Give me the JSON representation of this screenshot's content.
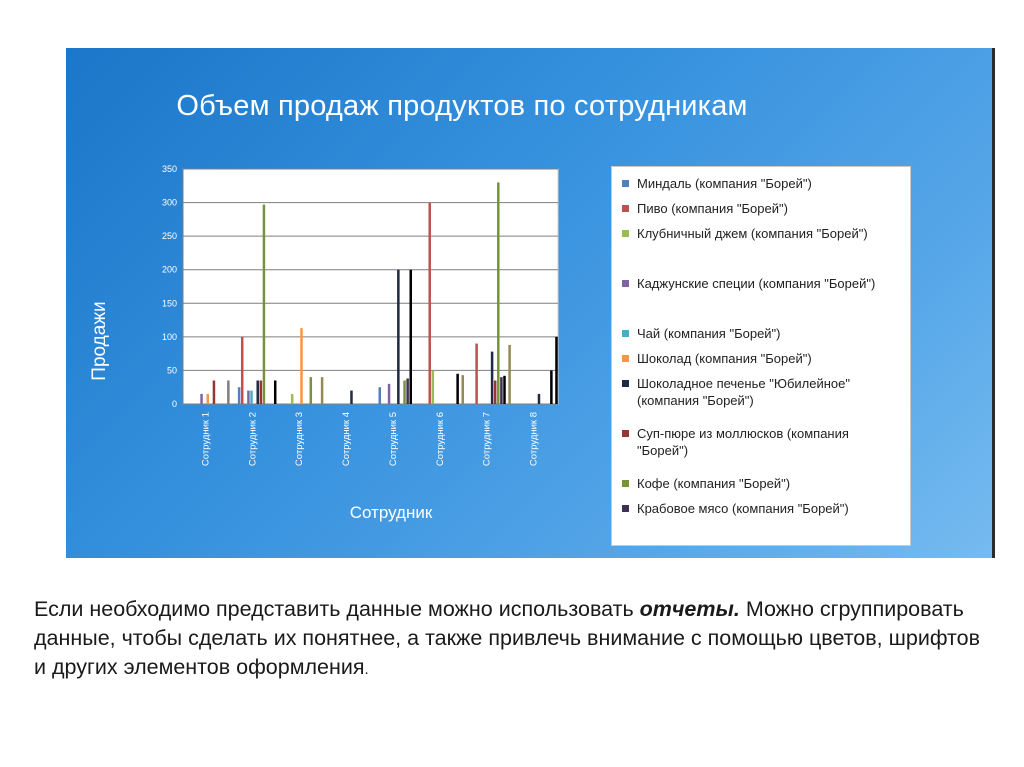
{
  "chart_data": {
    "type": "bar",
    "title": "Объем продаж продуктов по сотрудникам",
    "xlabel": "Сотрудник",
    "ylabel": "Продажи",
    "ylim": [
      0,
      350
    ],
    "yticks": [
      0,
      50,
      100,
      150,
      200,
      250,
      300,
      350
    ],
    "categories": [
      "Сотрудник 1",
      "Сотрудник 2",
      "Сотрудник 3",
      "Сотрудник 4",
      "Сотрудник 5",
      "Сотрудник 6",
      "Сотрудник 7",
      "Сотрудник 8"
    ],
    "grid": true,
    "legend_position": "right",
    "series": [
      {
        "name": "Миндаль (компания \"Борей\")",
        "color": "#4f81bd",
        "values": [
          null,
          25,
          null,
          null,
          25,
          null,
          null,
          null
        ]
      },
      {
        "name": "Пиво (компания \"Борей\")",
        "color": "#c0504d",
        "values": [
          null,
          100,
          null,
          null,
          null,
          300,
          90,
          null
        ]
      },
      {
        "name": "Клубничный джем (компания \"Борей\")",
        "color": "#9bbb59",
        "values": [
          null,
          null,
          15,
          null,
          null,
          50,
          null,
          null
        ]
      },
      {
        "name": "Каджунские специи (компания \"Борей\")",
        "color": "#8064a2",
        "values": [
          15,
          20,
          null,
          null,
          30,
          null,
          null,
          null
        ]
      },
      {
        "name": "Чай (компания \"Борей\")",
        "color": "#4bacc6",
        "values": [
          null,
          20,
          null,
          null,
          null,
          null,
          null,
          null
        ]
      },
      {
        "name": "Шоколад (компания \"Борей\")",
        "color": "#f79646",
        "values": [
          15,
          null,
          113,
          null,
          null,
          null,
          null,
          null
        ]
      },
      {
        "name": "Шоколадное печенье \"Юбилейное\" (компания \"Борей\")",
        "color": "#1f2a44",
        "values": [
          null,
          35,
          null,
          20,
          200,
          null,
          78,
          15
        ]
      },
      {
        "name": "Суп-пюре из моллюсков (компания \"Борей\")",
        "color": "#943634",
        "values": [
          35,
          35,
          null,
          null,
          null,
          null,
          35,
          null
        ]
      },
      {
        "name": "Кофе (компания \"Борей\")",
        "color": "#76923c",
        "values": [
          null,
          297,
          40,
          null,
          35,
          null,
          330,
          null
        ]
      },
      {
        "name": "Крабовое мясо (компания \"Борей\")",
        "color": "#403152",
        "values": [
          null,
          null,
          null,
          null,
          38,
          null,
          40,
          null
        ]
      },
      {
        "name": "",
        "color": "#000000",
        "values": [
          null,
          null,
          null,
          null,
          200,
          45,
          42,
          50
        ]
      }
    ],
    "extra_bars": [
      {
        "category": 1,
        "value": 35,
        "color": "#000000"
      },
      {
        "category": 2,
        "value": 40,
        "color": "#948a54"
      },
      {
        "category": 5,
        "value": 43,
        "color": "#948a54"
      },
      {
        "category": 6,
        "value": 88,
        "color": "#948a54"
      },
      {
        "category": 7,
        "value": 100,
        "color": "#000000"
      },
      {
        "category": 0,
        "value": 35,
        "color": "#7f7f7f"
      }
    ]
  },
  "caption": {
    "text_before": "Если необходимо представить данные можно использовать ",
    "bold_word": "отчеты.",
    "text_after": " Можно сгруппировать данные, чтобы сделать их понятнее, а также привлечь внимание с помощью цветов, шрифтов и других элементов оформления",
    "final_period": "."
  }
}
